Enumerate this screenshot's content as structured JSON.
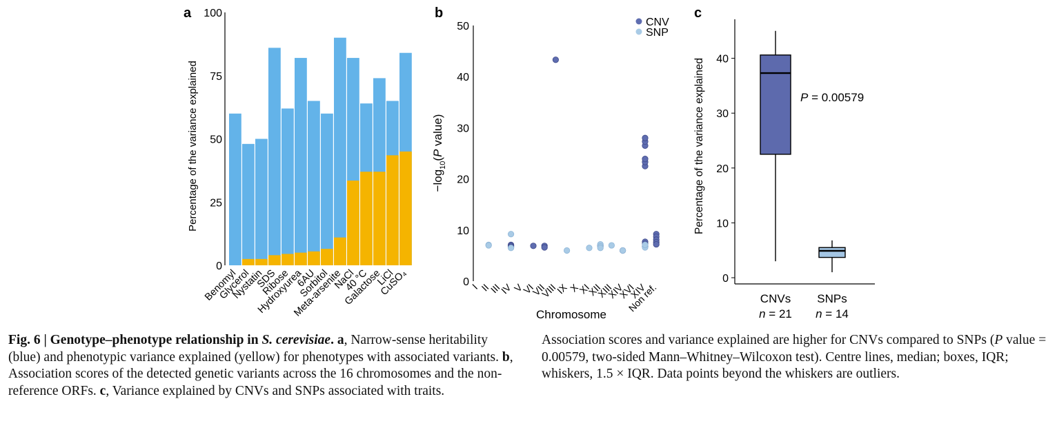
{
  "figure": {
    "caption_left_parts": [
      {
        "t": "Fig. 6 | Genotype–phenotype relationship in ",
        "s": "b"
      },
      {
        "t": "S. cerevisiae",
        "s": "bi"
      },
      {
        "t": ". ",
        "s": "b"
      },
      {
        "t": "a",
        "s": "b"
      },
      {
        "t": ", Narrow-sense heritability (blue) and phenotypic variance explained (yellow) for phenotypes with associated variants. ",
        "s": ""
      },
      {
        "t": "b",
        "s": "b"
      },
      {
        "t": ", Association scores of the detected genetic variants across the 16 chromosomes and the non-reference ORFs. ",
        "s": ""
      },
      {
        "t": "c",
        "s": "b"
      },
      {
        "t": ", Variance explained by CNVs and SNPs associated with traits.",
        "s": ""
      }
    ],
    "caption_right_parts": [
      {
        "t": "Association scores and variance explained are higher for CNVs compared to SNPs (",
        "s": ""
      },
      {
        "t": "P",
        "s": "i"
      },
      {
        "t": " value = 0.00579, two-sided Mann–Whitney–Wilcoxon test). Centre lines, median; boxes, IQR; whiskers, 1.5 × IQR. Data points beyond the whiskers are outliers.",
        "s": ""
      }
    ]
  },
  "colors": {
    "heritability": "#63b3e9",
    "variance": "#f5b400",
    "cnv": "#5f6db0",
    "snp": "#a9cbe6",
    "cnv_box": "#5d6aad",
    "snp_box": "#a4c6e4"
  },
  "chart_data": [
    {
      "panel": "a",
      "type": "bar",
      "stacked": "overlay",
      "ylabel": "Percentage of the variance explained",
      "ylim": [
        0,
        100
      ],
      "yticks": [
        0,
        25,
        50,
        75,
        100
      ],
      "categories": [
        "Benomyl",
        "Glycerol",
        "Nystatin",
        "SDS",
        "Ribose",
        "Hydroxyurea",
        "6AU",
        "Sorbitol",
        "Meta-arsenite",
        "NaCl",
        "40 °C",
        "Galactose",
        "LiCl",
        "CuSO₄"
      ],
      "series": [
        {
          "name": "Narrow-sense heritability",
          "values": [
            60,
            48,
            50,
            86,
            62,
            82,
            65,
            60,
            90,
            82,
            64,
            74,
            65,
            84
          ]
        },
        {
          "name": "Phenotypic variance explained",
          "values": [
            0,
            2.5,
            2.5,
            4,
            4.5,
            5,
            5.5,
            6.5,
            11,
            33.5,
            37,
            37,
            43.5,
            45
          ]
        }
      ]
    },
    {
      "panel": "b",
      "type": "scatter",
      "xlabel": "Chromosome",
      "ylabel": "−log10(P value)",
      "ylim": [
        0,
        50
      ],
      "yticks": [
        0,
        10,
        20,
        30,
        40,
        50
      ],
      "categories": [
        "I",
        "II",
        "III",
        "IV",
        "V",
        "VI",
        "VII",
        "VIII",
        "IX",
        "X",
        "XI",
        "XII",
        "XIII",
        "XIV",
        "XVI",
        "XIV",
        "Non ref."
      ],
      "legend": {
        "position": "top-right",
        "entries": [
          "CNV",
          "SNP"
        ]
      },
      "series": [
        {
          "name": "CNV",
          "points": [
            [
              4,
              7.1
            ],
            [
              4,
              6.9
            ],
            [
              4,
              6.7
            ],
            [
              6,
              6.9
            ],
            [
              7,
              6.9
            ],
            [
              7,
              6.6
            ],
            [
              8,
              43.3
            ],
            [
              12,
              6.9
            ],
            [
              14,
              6.0
            ],
            [
              16,
              7.7
            ],
            [
              16,
              7.3
            ],
            [
              16,
              6.8
            ],
            [
              16,
              22.5
            ],
            [
              16,
              23.3
            ],
            [
              16,
              23.9
            ],
            [
              16,
              26.5
            ],
            [
              16,
              27.3
            ],
            [
              16,
              28.0
            ],
            [
              17,
              9.2
            ],
            [
              17,
              8.7
            ],
            [
              17,
              8.1
            ],
            [
              17,
              7.6
            ],
            [
              17,
              7.2
            ]
          ]
        },
        {
          "name": "SNP",
          "points": [
            [
              2,
              7.1
            ],
            [
              2,
              7.0
            ],
            [
              4,
              9.2
            ],
            [
              4,
              6.5
            ],
            [
              9,
              6.0
            ],
            [
              11,
              6.5
            ],
            [
              12,
              7.2
            ],
            [
              12,
              6.8
            ],
            [
              12,
              6.5
            ],
            [
              13,
              7.0
            ],
            [
              14,
              6.0
            ],
            [
              16,
              6.6
            ],
            [
              16,
              7.1
            ]
          ]
        }
      ]
    },
    {
      "panel": "c",
      "type": "box",
      "ylabel": "Percentage of the variance explained",
      "ylim": [
        0,
        46
      ],
      "yticks": [
        0,
        10,
        20,
        30,
        40
      ],
      "categories": [
        "CNVs",
        "SNPs"
      ],
      "n_labels": [
        "n = 21",
        "n = 14"
      ],
      "annotation": "P = 0.00579",
      "boxes": [
        {
          "name": "CNVs",
          "min": 3,
          "q1": 22.5,
          "median": 37.3,
          "q3": 40.6,
          "max": 45
        },
        {
          "name": "SNPs",
          "min": 1,
          "q1": 3.7,
          "median": 4.9,
          "q3": 5.5,
          "max": 6.8
        }
      ]
    }
  ]
}
